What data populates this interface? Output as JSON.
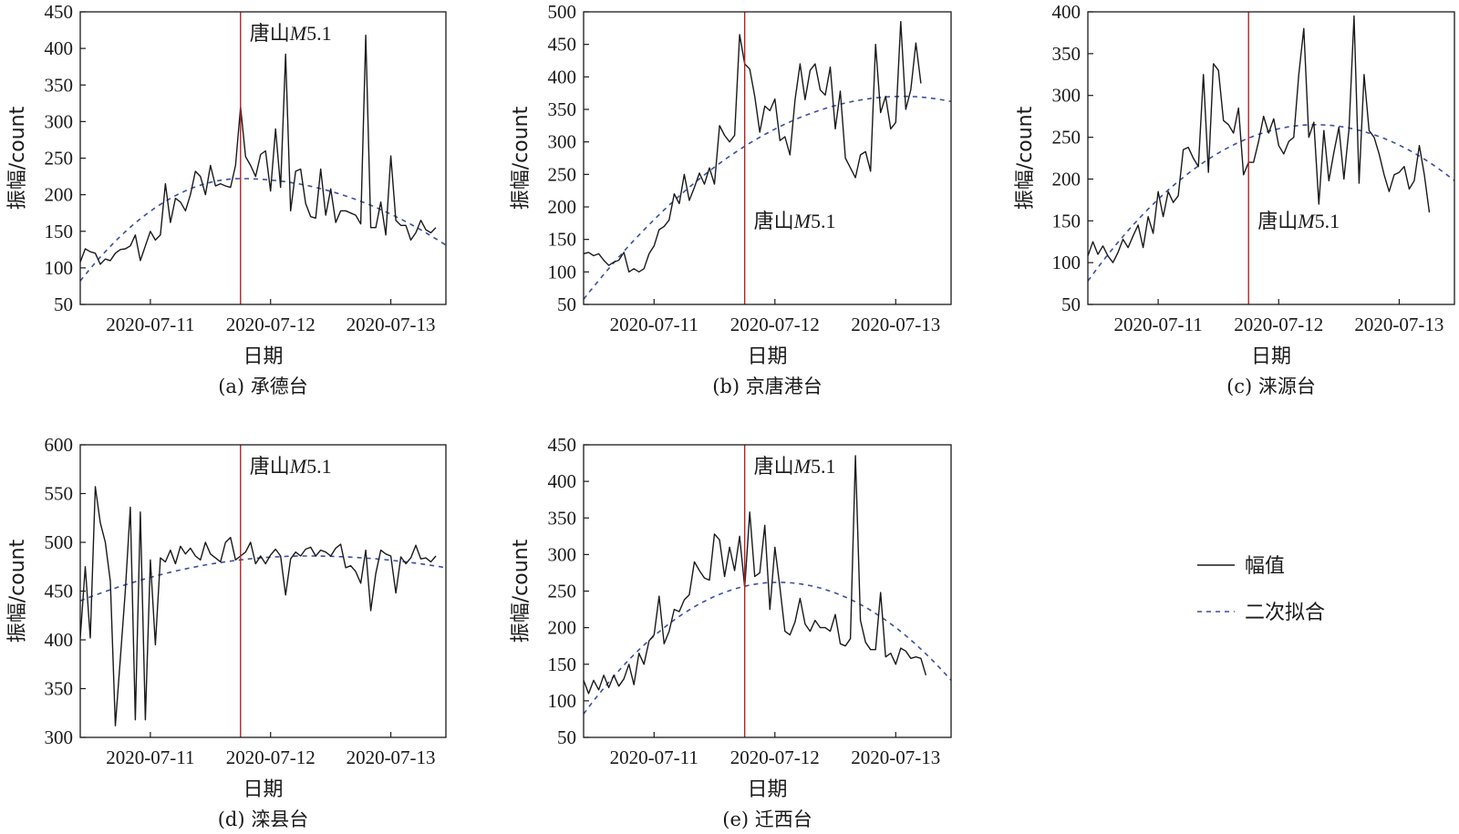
{
  "shared": {
    "xlabel": "日期",
    "ylabel": "振幅/count",
    "x_ticks": [
      "2020-07-11",
      "2020-07-12",
      "2020-07-13"
    ],
    "colors": {
      "amplitude": "#1a1a1a",
      "fit": "#3a4fa0",
      "event_line": "#b22222"
    }
  },
  "legend": {
    "amplitude_label": "幅值",
    "fit_label": "二次拟合"
  },
  "chart_data": [
    {
      "type": "line",
      "panel": "a",
      "caption": "(a) 承德台",
      "annotation": {
        "text": "唐山",
        "em": "M",
        "tail": "5.1",
        "date": "2020-07-11 18:00"
      },
      "xlim": [
        "2020-07-10 10:00",
        "2020-07-13 11:00"
      ],
      "ylim": [
        50,
        450
      ],
      "yticks": [
        "50",
        "100",
        "150",
        "200",
        "250",
        "300",
        "350",
        "400",
        "450"
      ],
      "series": [
        {
          "name": "幅值",
          "x_start": "2020-07-10 10:00",
          "x_step_hours": 1,
          "values": [
            108,
            126,
            122,
            120,
            105,
            112,
            110,
            120,
            125,
            126,
            130,
            145,
            110,
            130,
            150,
            138,
            145,
            215,
            162,
            195,
            190,
            178,
            200,
            232,
            225,
            200,
            240,
            212,
            215,
            212,
            210,
            240,
            320,
            252,
            240,
            225,
            255,
            260,
            205,
            290,
            210,
            392,
            178,
            232,
            235,
            188,
            170,
            168,
            235,
            172,
            208,
            162,
            178,
            178,
            175,
            172,
            160,
            418,
            155,
            155,
            190,
            145,
            253,
            165,
            158,
            158,
            138,
            148,
            165,
            152,
            148,
            155
          ]
        },
        {
          "name": "二次拟合",
          "style": "dashed",
          "quadratic": {
            "start": 82,
            "peak": 222,
            "peak_frac": 0.44,
            "end": 131
          }
        }
      ]
    },
    {
      "type": "line",
      "panel": "b",
      "caption": "(b) 京唐港台",
      "annotation": {
        "text": "唐山",
        "em": "M",
        "tail": "5.1",
        "date": "2020-07-11 18:00"
      },
      "xlim": [
        "2020-07-10 10:00",
        "2020-07-13 11:00"
      ],
      "ylim": [
        50,
        500
      ],
      "yticks": [
        "50",
        "100",
        "150",
        "200",
        "250",
        "300",
        "350",
        "400",
        "450",
        "500"
      ],
      "series": [
        {
          "name": "幅值",
          "x_start": "2020-07-10 10:00",
          "x_step_hours": 1,
          "values": [
            128,
            130,
            125,
            128,
            118,
            110,
            115,
            118,
            130,
            100,
            105,
            100,
            105,
            128,
            140,
            165,
            170,
            180,
            220,
            205,
            250,
            210,
            230,
            252,
            235,
            260,
            235,
            325,
            310,
            300,
            310,
            465,
            420,
            412,
            370,
            315,
            355,
            348,
            366,
            302,
            308,
            280,
            365,
            420,
            365,
            410,
            420,
            380,
            372,
            415,
            320,
            378,
            275,
            260,
            245,
            280,
            285,
            255,
            450,
            345,
            370,
            320,
            330,
            485,
            350,
            380,
            452,
            390
          ]
        },
        {
          "name": "二次拟合",
          "style": "dashed",
          "quadratic": {
            "start": 58,
            "peak": 370,
            "peak_frac": 0.87,
            "end": 362
          }
        }
      ]
    },
    {
      "type": "line",
      "panel": "c",
      "caption": "(c) 涞源台",
      "annotation": {
        "text": "唐山",
        "em": "M",
        "tail": "5.1",
        "date": "2020-07-11 18:00"
      },
      "xlim": [
        "2020-07-10 10:00",
        "2020-07-13 11:00"
      ],
      "ylim": [
        50,
        400
      ],
      "yticks": [
        "50",
        "100",
        "150",
        "200",
        "250",
        "300",
        "350",
        "400"
      ],
      "series": [
        {
          "name": "幅值",
          "x_start": "2020-07-10 10:00",
          "x_step_hours": 1,
          "values": [
            108,
            125,
            110,
            120,
            108,
            100,
            112,
            128,
            118,
            132,
            145,
            118,
            155,
            135,
            185,
            155,
            185,
            172,
            180,
            235,
            238,
            225,
            215,
            325,
            208,
            338,
            330,
            270,
            265,
            255,
            285,
            205,
            220,
            220,
            245,
            275,
            255,
            272,
            240,
            230,
            245,
            250,
            325,
            380,
            250,
            268,
            170,
            258,
            198,
            232,
            262,
            200,
            260,
            395,
            195,
            325,
            258,
            250,
            230,
            205,
            185,
            205,
            208,
            215,
            188,
            198,
            240,
            205,
            160
          ]
        },
        {
          "name": "二次拟合",
          "style": "dashed",
          "quadratic": {
            "start": 78,
            "peak": 265,
            "peak_frac": 0.62,
            "end": 198
          }
        }
      ]
    },
    {
      "type": "line",
      "panel": "d",
      "caption": "(d) 滦县台",
      "annotation": {
        "text": "唐山",
        "em": "M",
        "tail": "5.1",
        "date": "2020-07-11 18:00"
      },
      "xlim": [
        "2020-07-10 10:00",
        "2020-07-13 11:00"
      ],
      "ylim": [
        300,
        600
      ],
      "yticks": [
        "300",
        "350",
        "400",
        "450",
        "500",
        "550",
        "600"
      ],
      "series": [
        {
          "name": "幅值",
          "x_start": "2020-07-10 10:00",
          "x_step_hours": 1,
          "values": [
            402,
            475,
            402,
            557,
            520,
            500,
            460,
            312,
            380,
            450,
            536,
            318,
            531,
            318,
            482,
            395,
            484,
            480,
            492,
            478,
            496,
            488,
            494,
            486,
            482,
            500,
            488,
            484,
            480,
            500,
            505,
            482,
            486,
            490,
            500,
            478,
            486,
            478,
            487,
            493,
            486,
            446,
            483,
            490,
            486,
            493,
            495,
            486,
            492,
            490,
            486,
            494,
            498,
            474,
            476,
            470,
            458,
            492,
            430,
            468,
            492,
            488,
            486,
            448,
            485,
            478,
            484,
            497,
            483,
            484,
            480,
            486
          ]
        },
        {
          "name": "二次拟合",
          "style": "dashed",
          "quadratic": {
            "start": 440,
            "peak": 486,
            "peak_frac": 0.62,
            "end": 474
          }
        }
      ]
    },
    {
      "type": "line",
      "panel": "e",
      "caption": "(e) 迁西台",
      "annotation": {
        "text": "唐山",
        "em": "M",
        "tail": "5.1",
        "date": "2020-07-11 18:00"
      },
      "xlim": [
        "2020-07-10 10:00",
        "2020-07-13 11:00"
      ],
      "ylim": [
        50,
        450
      ],
      "yticks": [
        "50",
        "100",
        "150",
        "200",
        "250",
        "300",
        "350",
        "400",
        "450"
      ],
      "series": [
        {
          "name": "幅值",
          "x_start": "2020-07-10 10:00",
          "x_step_hours": 1,
          "values": [
            128,
            110,
            128,
            115,
            135,
            118,
            135,
            120,
            130,
            150,
            122,
            165,
            150,
            182,
            190,
            243,
            178,
            195,
            225,
            222,
            238,
            245,
            290,
            278,
            268,
            265,
            328,
            320,
            270,
            310,
            278,
            325,
            255,
            358,
            270,
            275,
            340,
            225,
            310,
            255,
            195,
            190,
            208,
            240,
            205,
            195,
            210,
            200,
            200,
            195,
            218,
            178,
            175,
            185,
            435,
            210,
            180,
            170,
            170,
            248,
            160,
            165,
            150,
            172,
            168,
            158,
            160,
            158,
            135
          ]
        },
        {
          "name": "二次拟合",
          "style": "dashed",
          "quadratic": {
            "start": 82,
            "peak": 262,
            "peak_frac": 0.53,
            "end": 128
          }
        }
      ]
    }
  ]
}
